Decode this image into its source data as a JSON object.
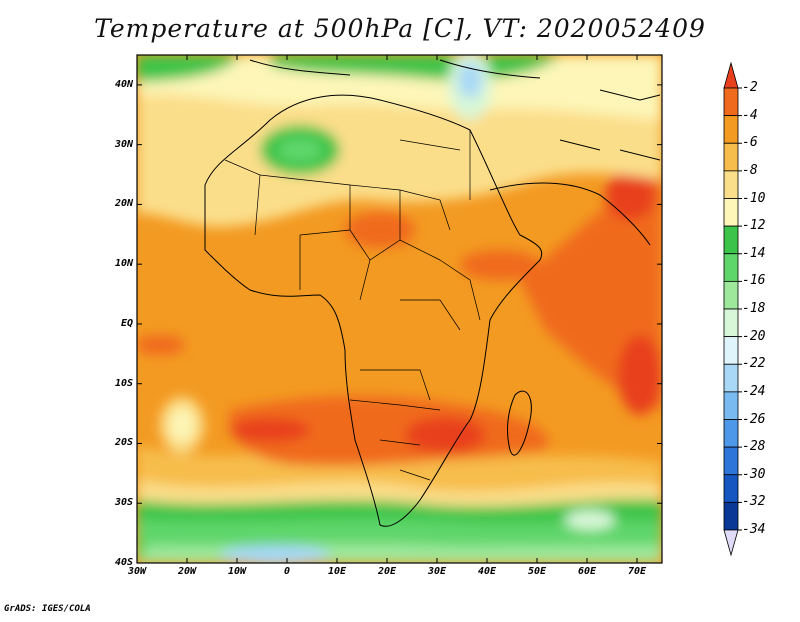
{
  "title": "Temperature at 500hPa [C], VT: 2020052409",
  "credit": "GrADS: IGES/COLA",
  "map": {
    "lat_labels": [
      "40N",
      "30N",
      "20N",
      "10N",
      "EQ",
      "10S",
      "20S",
      "30S",
      "40S"
    ],
    "lon_labels": [
      "30W",
      "20W",
      "10W",
      "0",
      "10E",
      "20E",
      "30E",
      "40E",
      "50E",
      "60E",
      "70E"
    ],
    "lat_range": [
      -40,
      45
    ],
    "lon_range": [
      -30,
      75
    ]
  },
  "colorbar": {
    "labels": [
      "-2",
      "-4",
      "-6",
      "-8",
      "-10",
      "-12",
      "-14",
      "-16",
      "-18",
      "-20",
      "-22",
      "-24",
      "-26",
      "-28",
      "-30",
      "-32",
      "-34"
    ],
    "colors": [
      "#e8401c",
      "#f06a1e",
      "#f39a22",
      "#f7bd4c",
      "#fbde8a",
      "#fdf6b8",
      "#3cc44a",
      "#5fd66a",
      "#9ee89c",
      "#d8f7d8",
      "#dff4fb",
      "#a8d8f6",
      "#79baf1",
      "#4d98e8",
      "#2d75d8",
      "#1556c0",
      "#0a3896",
      "#0c1a6a"
    ],
    "top_arrow_color": "#e8401c",
    "bottom_arrow_color": "#e0dcf8"
  }
}
